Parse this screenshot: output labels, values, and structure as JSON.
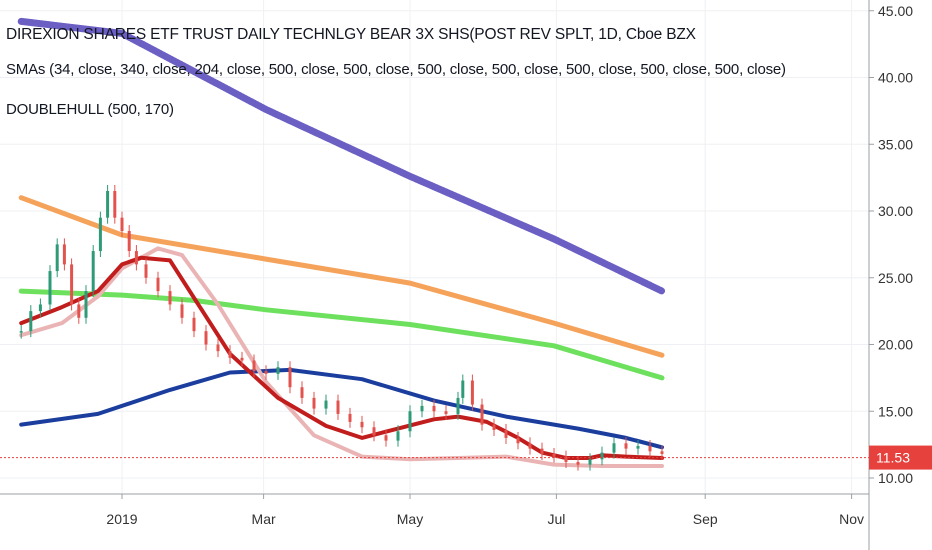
{
  "legend": {
    "title": "DIREXION SHARES ETF TRUST DAILY TECHNLGY BEAR 3X SHS(POST REV SPLT, 1D, Cboe BZX",
    "smas": "SMAs (34, close, 340, close, 204, close, 500, close, 500, close, 500, close, 500, close, 500, close, 500, close, 500, close)",
    "hull": "DOUBLEHULL (500, 170)"
  },
  "price_tag": "11.53",
  "colors": {
    "purple": "#6b5fc4",
    "orange": "#f5a25a",
    "green": "#6de05e",
    "blue": "#1b3e9e",
    "red": "#c21d1d",
    "pink": "#eab4b4",
    "candle_up": "#2e9a77",
    "candle_down": "#e2534e",
    "price_tag_bg": "#e6413c"
  },
  "chart_data": {
    "type": "line",
    "title": "DIREXION SHARES ETF TRUST DAILY TECHNLGY BEAR 3X SHS(POST REV SPLT, 1D, Cboe BZX",
    "x_ticks": [
      "2019",
      "Mar",
      "May",
      "Jul",
      "Sep",
      "Nov"
    ],
    "y_ticks": [
      "10.00",
      "15.00",
      "20.00",
      "25.00",
      "30.00",
      "35.00",
      "40.00",
      "45.00"
    ],
    "ylim": [
      8.8,
      45.5
    ],
    "last_price": 11.53,
    "series": [
      {
        "name": "SMA (long, purple)",
        "color": "#6b5fc4",
        "x": [
          -42,
          0,
          60,
          120,
          180,
          225
        ],
        "y": [
          44.2,
          43.3,
          37.6,
          32.6,
          27.9,
          24.0
        ]
      },
      {
        "name": "SMA (orange)",
        "color": "#f5a25a",
        "x": [
          -42,
          0,
          60,
          120,
          180,
          225
        ],
        "y": [
          31.0,
          28.2,
          26.4,
          24.6,
          21.6,
          19.2
        ]
      },
      {
        "name": "SMA (green)",
        "color": "#6de05e",
        "x": [
          -42,
          0,
          30,
          60,
          120,
          180,
          225
        ],
        "y": [
          24.0,
          23.7,
          23.3,
          22.6,
          21.5,
          19.9,
          17.5
        ]
      },
      {
        "name": "SMA (blue)",
        "color": "#1b3e9e",
        "x": [
          -42,
          -10,
          20,
          45,
          70,
          100,
          130,
          160,
          190,
          210,
          225
        ],
        "y": [
          14.0,
          14.8,
          16.6,
          17.9,
          18.1,
          17.4,
          15.8,
          14.6,
          13.7,
          13.0,
          12.3
        ]
      },
      {
        "name": "DOUBLEHULL (red)",
        "color": "#c21d1d",
        "x": [
          -42,
          -25,
          -10,
          0,
          8,
          20,
          30,
          45,
          65,
          85,
          100,
          115,
          130,
          140,
          152,
          165,
          175,
          185,
          195,
          200,
          210,
          225
        ],
        "y": [
          21.6,
          22.8,
          24.0,
          26.0,
          26.5,
          26.3,
          23.5,
          19.3,
          16.0,
          13.9,
          13.0,
          13.7,
          14.4,
          14.6,
          14.2,
          13.0,
          11.9,
          11.5,
          11.5,
          11.7,
          11.6,
          11.5
        ]
      },
      {
        "name": "DOUBLEHULL (pink)",
        "color": "#eab4b4",
        "x": [
          -42,
          -25,
          -10,
          0,
          15,
          25,
          40,
          60,
          80,
          100,
          120,
          140,
          160,
          180,
          200,
          225
        ],
        "y": [
          20.7,
          21.6,
          23.6,
          25.7,
          27.2,
          26.7,
          23.0,
          17.2,
          13.2,
          11.6,
          11.4,
          11.5,
          11.6,
          11.0,
          10.9,
          10.9
        ]
      }
    ],
    "candles_close": [
      {
        "x": -42,
        "close": 21.0
      },
      {
        "x": -38,
        "close": 22.5
      },
      {
        "x": -34,
        "close": 23.0
      },
      {
        "x": -30,
        "close": 25.5
      },
      {
        "x": -27,
        "close": 27.5
      },
      {
        "x": -24,
        "close": 26.0
      },
      {
        "x": -21,
        "close": 23.0
      },
      {
        "x": -18,
        "close": 22.0
      },
      {
        "x": -15,
        "close": 24.0
      },
      {
        "x": -12,
        "close": 27.0
      },
      {
        "x": -9,
        "close": 29.5
      },
      {
        "x": -6,
        "close": 31.5
      },
      {
        "x": -3,
        "close": 29.5
      },
      {
        "x": 0,
        "close": 28.5
      },
      {
        "x": 3,
        "close": 27.0
      },
      {
        "x": 6,
        "close": 26.0
      },
      {
        "x": 10,
        "close": 25.0
      },
      {
        "x": 15,
        "close": 24.0
      },
      {
        "x": 20,
        "close": 23.0
      },
      {
        "x": 25,
        "close": 22.0
      },
      {
        "x": 30,
        "close": 21.0
      },
      {
        "x": 35,
        "close": 20.0
      },
      {
        "x": 40,
        "close": 19.5
      },
      {
        "x": 45,
        "close": 19.0
      },
      {
        "x": 50,
        "close": 18.8
      },
      {
        "x": 55,
        "close": 18.0
      },
      {
        "x": 60,
        "close": 17.8
      },
      {
        "x": 65,
        "close": 18.3
      },
      {
        "x": 70,
        "close": 16.8
      },
      {
        "x": 75,
        "close": 16.0
      },
      {
        "x": 80,
        "close": 15.2
      },
      {
        "x": 85,
        "close": 15.8
      },
      {
        "x": 90,
        "close": 14.8
      },
      {
        "x": 95,
        "close": 14.2
      },
      {
        "x": 100,
        "close": 13.8
      },
      {
        "x": 105,
        "close": 13.2
      },
      {
        "x": 110,
        "close": 12.8
      },
      {
        "x": 115,
        "close": 13.5
      },
      {
        "x": 120,
        "close": 15.0
      },
      {
        "x": 125,
        "close": 15.4
      },
      {
        "x": 130,
        "close": 15.0
      },
      {
        "x": 135,
        "close": 14.8
      },
      {
        "x": 140,
        "close": 16.0
      },
      {
        "x": 142,
        "close": 17.3
      },
      {
        "x": 146,
        "close": 15.5
      },
      {
        "x": 150,
        "close": 14.0
      },
      {
        "x": 155,
        "close": 13.6
      },
      {
        "x": 160,
        "close": 13.0
      },
      {
        "x": 165,
        "close": 12.6
      },
      {
        "x": 170,
        "close": 12.2
      },
      {
        "x": 175,
        "close": 11.8
      },
      {
        "x": 180,
        "close": 11.6
      },
      {
        "x": 185,
        "close": 11.2
      },
      {
        "x": 190,
        "close": 11.0
      },
      {
        "x": 195,
        "close": 11.4
      },
      {
        "x": 200,
        "close": 11.9
      },
      {
        "x": 205,
        "close": 12.6
      },
      {
        "x": 210,
        "close": 12.2
      },
      {
        "x": 215,
        "close": 12.4
      },
      {
        "x": 220,
        "close": 12.0
      },
      {
        "x": 225,
        "close": 11.8
      }
    ]
  }
}
